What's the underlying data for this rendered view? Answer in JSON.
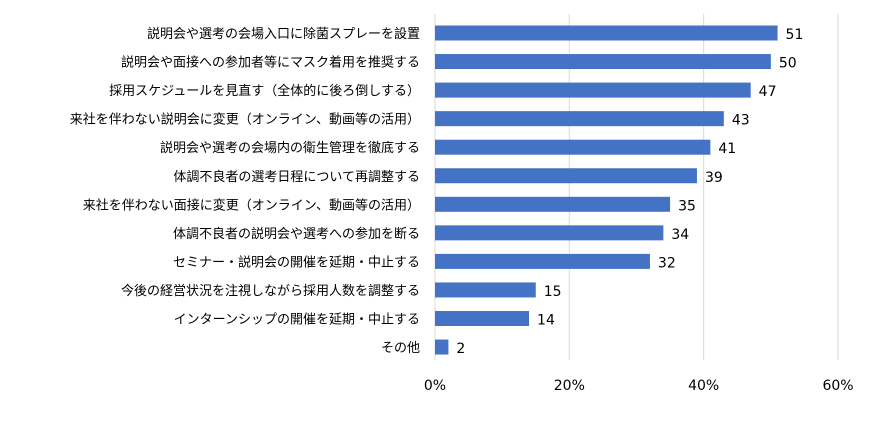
{
  "chart_data": {
    "type": "bar",
    "orientation": "horizontal",
    "categories": [
      "説明会や選考の会場入口に除菌スプレーを設置",
      "説明会や面接への参加者等にマスク着用を推奨する",
      "採用スケジュールを見直す（全体的に後ろ倒しする）",
      "来社を伴わない説明会に変更（オンライン、動画等の活用）",
      "説明会や選考の会場内の衛生管理を徹底する",
      "体調不良者の選考日程について再調整する",
      "来社を伴わない面接に変更（オンライン、動画等の活用）",
      "体調不良者の説明会や選考への参加を断る",
      "セミナー・説明会の開催を延期・中止する",
      "今後の経営状況を注視しながら採用人数を調整する",
      "インターンシップの開催を延期・中止する",
      "その他"
    ],
    "values": [
      51,
      50,
      47,
      43,
      41,
      39,
      35,
      34,
      32,
      15,
      14,
      2
    ],
    "data_labels": [
      "51",
      "50",
      "47",
      "43",
      "41",
      "39",
      "35",
      "34",
      "32",
      "15",
      "14",
      "2"
    ],
    "xlim": [
      0,
      60
    ],
    "x_ticks": [
      {
        "value": 0,
        "label": "0%"
      },
      {
        "value": 20,
        "label": "20%"
      },
      {
        "value": 40,
        "label": "40%"
      },
      {
        "value": 60,
        "label": "60%"
      }
    ],
    "grid": true,
    "bar_color": "#4472C4",
    "grid_color": "#D9D9D9",
    "text_color": "#000000"
  }
}
